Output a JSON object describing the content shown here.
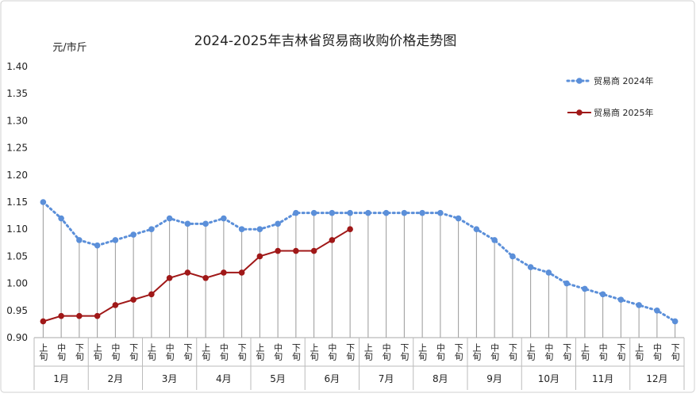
{
  "chart_data": {
    "type": "line",
    "title": "2024-2025年吉林省贸易商收购价格走势图",
    "y_label": "元/市斤",
    "categories": [
      "上旬",
      "中旬",
      "下旬",
      "上旬",
      "中旬",
      "下旬",
      "上旬",
      "中旬",
      "下旬",
      "上旬",
      "中旬",
      "下旬",
      "上旬",
      "中旬",
      "下旬",
      "上旬",
      "中旬",
      "下旬",
      "上旬",
      "中旬",
      "下旬",
      "上旬",
      "中旬",
      "下旬",
      "上旬",
      "中旬",
      "下旬",
      "上旬",
      "中旬",
      "下旬",
      "上旬",
      "中旬",
      "下旬",
      "上旬",
      "中旬",
      "下旬"
    ],
    "groups": [
      "1月",
      "2月",
      "3月",
      "4月",
      "5月",
      "6月",
      "7月",
      "8月",
      "9月",
      "10月",
      "11月",
      "12月"
    ],
    "series": [
      {
        "name": "贸易商 2024年",
        "color": "#5b8fd9",
        "style": "dotted",
        "values": [
          1.15,
          1.12,
          1.08,
          1.07,
          1.08,
          1.09,
          1.1,
          1.12,
          1.11,
          1.11,
          1.12,
          1.1,
          1.1,
          1.11,
          1.13,
          1.13,
          1.13,
          1.13,
          1.13,
          1.13,
          1.13,
          1.13,
          1.13,
          1.12,
          1.1,
          1.08,
          1.05,
          1.03,
          1.02,
          1.0,
          0.99,
          0.98,
          0.97,
          0.96,
          0.95,
          0.93
        ]
      },
      {
        "name": "贸易商 2025年",
        "color": "#a01818",
        "style": "solid",
        "values": [
          0.93,
          0.94,
          0.94,
          0.94,
          0.96,
          0.97,
          0.98,
          1.01,
          1.02,
          1.01,
          1.02,
          1.02,
          1.05,
          1.06,
          1.06,
          1.06,
          1.08,
          1.1,
          null,
          null,
          null,
          null,
          null,
          null,
          null,
          null,
          null,
          null,
          null,
          null,
          null,
          null,
          null,
          null,
          null,
          null
        ]
      }
    ],
    "ylim": [
      0.9,
      1.4
    ],
    "yticks": [
      {
        "value": 0.9,
        "label": "0.90"
      },
      {
        "value": 0.95,
        "label": "0.95"
      },
      {
        "value": 1.0,
        "label": "1.00"
      },
      {
        "value": 1.05,
        "label": "1.05"
      },
      {
        "value": 1.1,
        "label": "1.10"
      },
      {
        "value": 1.15,
        "label": "1.15"
      },
      {
        "value": 1.2,
        "label": "1.20"
      },
      {
        "value": 1.25,
        "label": "1.25"
      },
      {
        "value": 1.3,
        "label": "1.30"
      },
      {
        "value": 1.35,
        "label": "1.35"
      },
      {
        "value": 1.4,
        "label": "1.40"
      }
    ],
    "drop_lines": true,
    "legend": "top-right"
  }
}
